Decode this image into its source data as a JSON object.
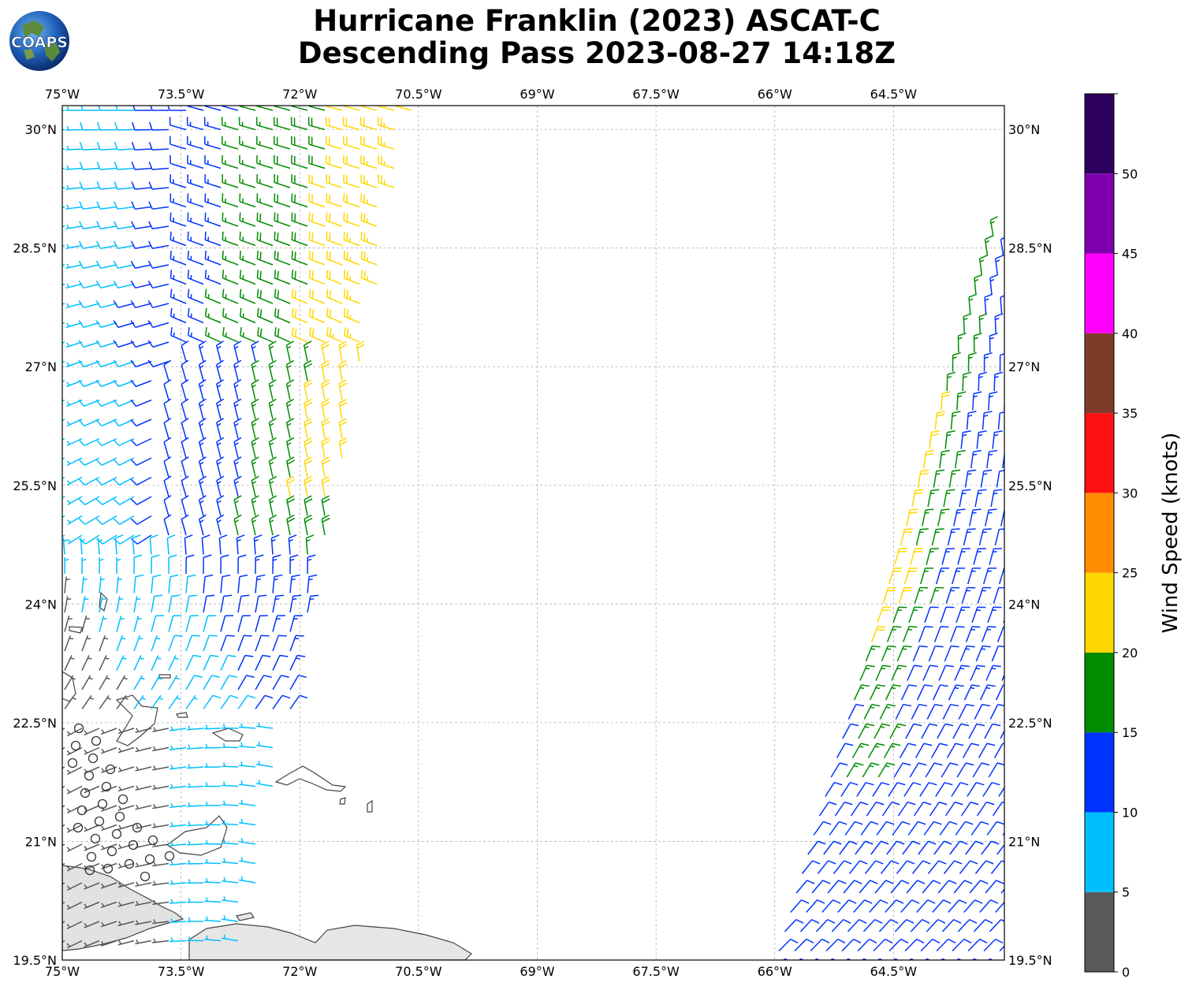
{
  "title": {
    "line1": "Hurricane Franklin (2023) ASCAT-C",
    "line2": "Descending Pass 2023-08-27 14:18Z"
  },
  "logo": {
    "text": "COAPS"
  },
  "map": {
    "lon_range": [
      -75,
      -63.1
    ],
    "lat_range": [
      19.5,
      30.3
    ],
    "lon_ticks": [
      {
        "value": -75,
        "label": "75°W"
      },
      {
        "value": -73.5,
        "label": "73.5°W"
      },
      {
        "value": -72,
        "label": "72°W"
      },
      {
        "value": -70.5,
        "label": "70.5°W"
      },
      {
        "value": -69,
        "label": "69°W"
      },
      {
        "value": -67.5,
        "label": "67.5°W"
      },
      {
        "value": -66,
        "label": "66°W"
      },
      {
        "value": -64.5,
        "label": "64.5°W"
      }
    ],
    "lat_ticks": [
      {
        "value": 30,
        "label": "30°N"
      },
      {
        "value": 28.5,
        "label": "28.5°N"
      },
      {
        "value": 27,
        "label": "27°N"
      },
      {
        "value": 25.5,
        "label": "25.5°N"
      },
      {
        "value": 24,
        "label": "24°N"
      },
      {
        "value": 22.5,
        "label": "22.5°N"
      },
      {
        "value": 21,
        "label": "21°N"
      },
      {
        "value": 19.5,
        "label": "19.5°N"
      }
    ],
    "gridlines": true
  },
  "colorbar": {
    "label": "Wind Speed (knots)",
    "bins": [
      {
        "from": 0,
        "to": 5,
        "color": "#595959"
      },
      {
        "from": 5,
        "to": 10,
        "color": "#00bfff"
      },
      {
        "from": 10,
        "to": 15,
        "color": "#0033ff"
      },
      {
        "from": 15,
        "to": 20,
        "color": "#008c00"
      },
      {
        "from": 20,
        "to": 25,
        "color": "#ffd700"
      },
      {
        "from": 25,
        "to": 30,
        "color": "#ff8c00"
      },
      {
        "from": 30,
        "to": 35,
        "color": "#ff1010"
      },
      {
        "from": 35,
        "to": 40,
        "color": "#7f3b2a"
      },
      {
        "from": 40,
        "to": 45,
        "color": "#ff00ff"
      },
      {
        "from": 45,
        "to": 50,
        "color": "#8000b0"
      },
      {
        "from": 50,
        "to": 55,
        "color": "#2e005e"
      }
    ],
    "tick_labels": [
      "0",
      "5",
      "10",
      "15",
      "20",
      "25",
      "30",
      "35",
      "40",
      "45",
      "50"
    ]
  }
}
